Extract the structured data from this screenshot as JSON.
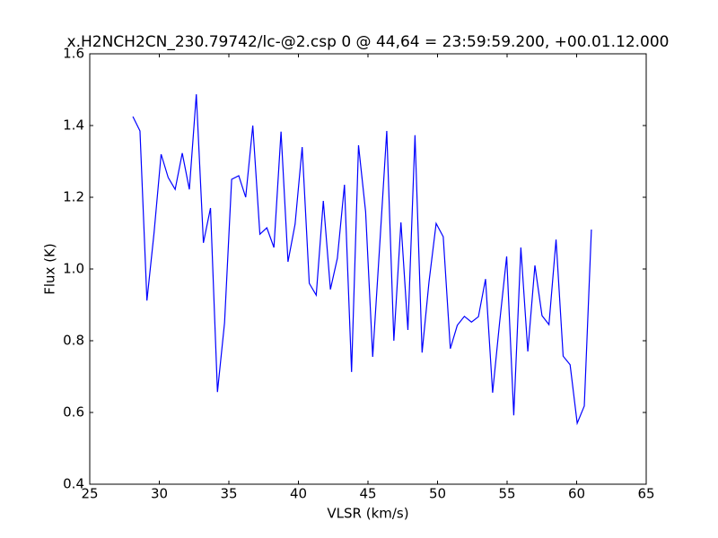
{
  "chart_data": {
    "type": "line",
    "title": "x.H2NCH2CN_230.79742/lc-@2.csp 0 @ 44,64 = 23:59:59.200, +00.01.12.000",
    "x_label": "VLSR (km/s)",
    "y_label": "Flux (K)",
    "xlim": [
      25,
      65
    ],
    "xticks": [
      25,
      30,
      35,
      40,
      45,
      50,
      55,
      60,
      65
    ],
    "ylim": [
      0.4,
      1.6
    ],
    "yticks": [
      0.4,
      0.6,
      0.8,
      {
        "value": 1,
        "label": "1.0"
      },
      1.2,
      1.4,
      1.6
    ],
    "grid": false,
    "series": [
      {
        "color": "#0000ff",
        "x": [
          28.1,
          28.61,
          29.11,
          29.62,
          30.13,
          30.64,
          31.14,
          31.65,
          32.16,
          32.66,
          33.17,
          33.68,
          34.18,
          34.69,
          35.2,
          35.71,
          36.21,
          36.72,
          37.23,
          37.73,
          38.24,
          38.75,
          39.25,
          39.76,
          40.27,
          40.78,
          41.28,
          41.79,
          42.3,
          42.8,
          43.31,
          43.82,
          44.32,
          44.83,
          45.34,
          45.85,
          46.35,
          46.86,
          47.37,
          47.87,
          48.38,
          48.89,
          49.39,
          49.9,
          50.41,
          50.92,
          51.42,
          51.93,
          52.44,
          52.94,
          53.45,
          53.96,
          54.46,
          54.97,
          55.48,
          55.99,
          56.49,
          57.0,
          57.51,
          58.01,
          58.52,
          59.03,
          59.53,
          60.04,
          60.55,
          61.06
        ],
        "values": [
          1.425,
          1.385,
          0.912,
          1.1,
          1.32,
          1.255,
          1.222,
          1.323,
          1.222,
          1.487,
          1.073,
          1.17,
          0.657,
          0.85,
          1.25,
          1.26,
          1.2,
          1.4,
          1.097,
          1.115,
          1.06,
          1.383,
          1.02,
          1.125,
          1.34,
          0.96,
          0.927,
          1.19,
          0.943,
          1.03,
          1.235,
          0.713,
          1.345,
          1.16,
          0.755,
          1.07,
          1.385,
          0.8,
          1.13,
          0.83,
          1.373,
          0.767,
          0.965,
          1.127,
          1.09,
          0.778,
          0.843,
          0.868,
          0.852,
          0.867,
          0.972,
          0.655,
          0.85,
          1.035,
          0.592,
          1.06,
          0.77,
          1.01,
          0.87,
          0.845,
          1.082,
          0.757,
          0.733,
          0.57,
          0.618,
          1.11
        ]
      }
    ]
  }
}
